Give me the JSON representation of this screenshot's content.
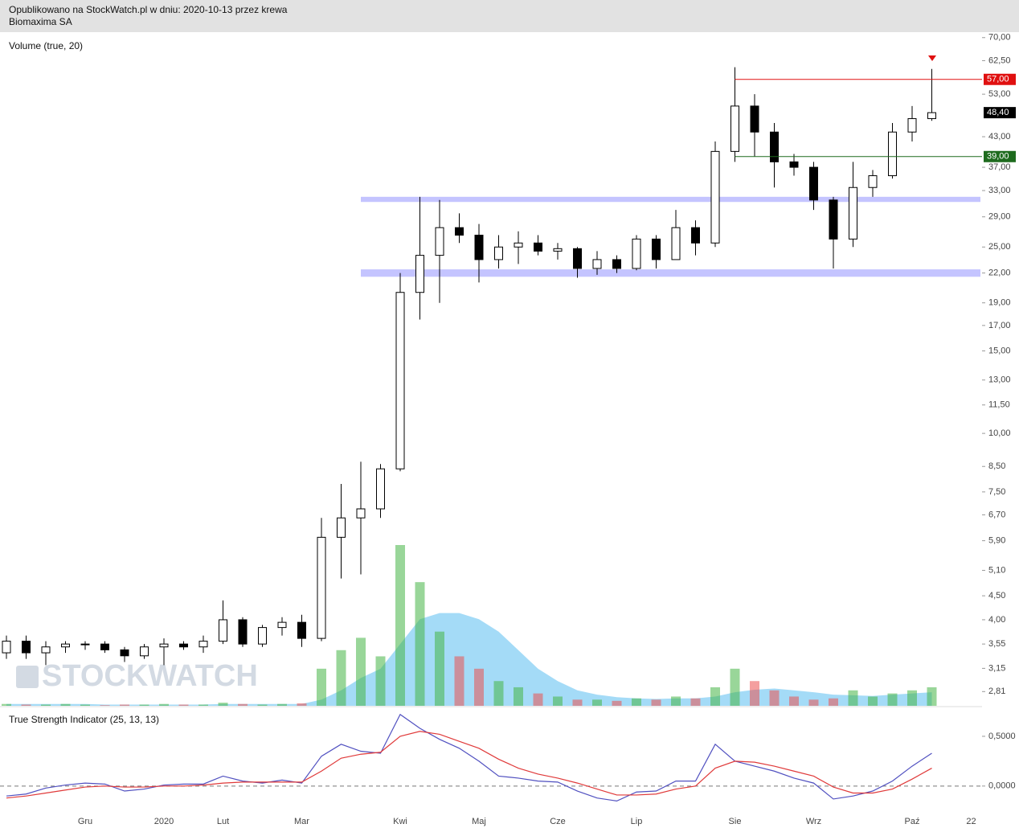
{
  "header": {
    "line1": "Opublikowano na StockWatch.pl w dniu: 2020-10-13 przez krewa",
    "line2": "Biomaxima SA"
  },
  "watermark": "STOCKWATCH",
  "chart_data": [
    {
      "type": "candlestick",
      "categories": [
        null,
        null,
        null,
        null,
        "Gru",
        null,
        null,
        null,
        "2020",
        null,
        null,
        "Lut",
        null,
        null,
        null,
        "Mar",
        null,
        null,
        null,
        null,
        "Kwi",
        null,
        null,
        null,
        "Maj",
        null,
        null,
        null,
        "Cze",
        null,
        null,
        null,
        "Lip",
        null,
        null,
        null,
        null,
        "Sie",
        null,
        null,
        null,
        "Wrz",
        null,
        null,
        null,
        null,
        "Paź",
        null,
        null,
        "22"
      ],
      "open": [
        3.4,
        3.6,
        3.4,
        3.5,
        3.55,
        3.55,
        3.45,
        3.35,
        3.5,
        3.55,
        3.5,
        3.6,
        4.0,
        3.55,
        3.85,
        3.95,
        3.65,
        6.0,
        6.6,
        6.9,
        8.4,
        20.0,
        24.0,
        27.5,
        26.5,
        23.5,
        25.0,
        25.5,
        24.5,
        24.8,
        22.5,
        23.5,
        22.5,
        26.0,
        23.5,
        27.5,
        25.5,
        40.0,
        50.0,
        44.0,
        38.0,
        37.0,
        31.5,
        26.0,
        33.5,
        35.5,
        44.0,
        47.0,
        null,
        null
      ],
      "high": [
        3.7,
        3.7,
        3.6,
        3.6,
        3.6,
        3.6,
        3.5,
        3.55,
        3.65,
        3.6,
        3.7,
        4.4,
        4.05,
        3.9,
        4.05,
        4.1,
        6.6,
        7.8,
        8.7,
        8.6,
        22.0,
        32.0,
        31.5,
        29.5,
        28.0,
        26.5,
        27.0,
        26.5,
        25.5,
        25.0,
        24.5,
        24.0,
        26.5,
        26.5,
        30.0,
        28.5,
        42.0,
        60.5,
        53.0,
        46.0,
        39.5,
        38.0,
        32.0,
        38.0,
        36.5,
        46.0,
        50.0,
        60.0,
        null,
        null
      ],
      "low": [
        3.3,
        3.3,
        3.2,
        3.4,
        3.45,
        3.4,
        3.25,
        3.3,
        3.2,
        3.45,
        3.4,
        3.55,
        3.5,
        3.5,
        3.7,
        3.5,
        3.6,
        4.9,
        5.0,
        6.6,
        8.3,
        17.5,
        19.0,
        25.5,
        21.0,
        22.5,
        23.0,
        24.0,
        23.5,
        21.5,
        21.8,
        22.0,
        22.3,
        22.5,
        23.5,
        24.0,
        25.0,
        38.0,
        39.0,
        33.5,
        35.5,
        30.0,
        22.5,
        25.0,
        32.0,
        35.0,
        42.0,
        46.5,
        null,
        null
      ],
      "close": [
        3.6,
        3.4,
        3.5,
        3.55,
        3.55,
        3.45,
        3.35,
        3.5,
        3.55,
        3.5,
        3.6,
        4.0,
        3.55,
        3.85,
        3.95,
        3.65,
        6.0,
        6.6,
        6.9,
        8.4,
        20.0,
        24.0,
        27.5,
        26.5,
        23.5,
        25.0,
        25.5,
        24.5,
        24.8,
        22.5,
        23.5,
        22.5,
        26.0,
        23.5,
        27.5,
        25.5,
        40.0,
        50.0,
        44.0,
        38.0,
        37.0,
        31.5,
        26.0,
        33.5,
        35.5,
        44.0,
        47.0,
        48.4,
        null,
        null
      ],
      "color_up": "#ffffff",
      "color_down": "#000000",
      "log_scale": true,
      "ylim": [
        2.62,
        71.9
      ],
      "yticks": [
        {
          "value": 70,
          "label": "70,00"
        },
        {
          "value": 62.5,
          "label": "62,50"
        },
        {
          "value": 53,
          "label": "53,00"
        },
        {
          "value": 43,
          "label": "43,00"
        },
        {
          "value": 37,
          "label": "37,00"
        },
        {
          "value": 33,
          "label": "33,00"
        },
        {
          "value": 29,
          "label": "29,00"
        },
        {
          "value": 25,
          "label": "25,00"
        },
        {
          "value": 22,
          "label": "22,00"
        },
        {
          "value": 19,
          "label": "19,00"
        },
        {
          "value": 17,
          "label": "17,00"
        },
        {
          "value": 15,
          "label": "15,00"
        },
        {
          "value": 13,
          "label": "13,00"
        },
        {
          "value": 11.5,
          "label": "11,50"
        },
        {
          "value": 10,
          "label": "10,00"
        },
        {
          "value": 8.5,
          "label": "8,50"
        },
        {
          "value": 7.5,
          "label": "7,50"
        },
        {
          "value": 6.7,
          "label": "6,70"
        },
        {
          "value": 5.9,
          "label": "5,90"
        },
        {
          "value": 5.1,
          "label": "5,10"
        },
        {
          "value": 4.5,
          "label": "4,50"
        },
        {
          "value": 4,
          "label": "4,00"
        },
        {
          "value": 3.55,
          "label": "3,55"
        },
        {
          "value": 3.15,
          "label": "3,15"
        },
        {
          "value": 2.81,
          "label": "2,81"
        }
      ],
      "levels": [
        {
          "value": 57,
          "label": "57,00",
          "color": "#e01010"
        },
        {
          "value": 48.4,
          "label": "48,40",
          "color": "#000000"
        },
        {
          "value": 39,
          "label": "39,00",
          "color": "#1e6b1e"
        }
      ],
      "zones": [
        {
          "from": 31.2,
          "to": 32.0,
          "color": "#c4c4ff"
        },
        {
          "from": 21.6,
          "to": 22.4,
          "color": "#c4c4ff"
        }
      ],
      "volume": {
        "label": "Volume (true, 20)",
        "values": [
          3,
          2,
          2,
          3,
          2,
          1,
          2,
          2,
          3,
          2,
          2,
          5,
          3,
          2,
          3,
          4,
          60,
          90,
          110,
          80,
          260,
          200,
          120,
          80,
          60,
          40,
          30,
          20,
          15,
          10,
          10,
          8,
          12,
          10,
          15,
          12,
          30,
          60,
          40,
          25,
          15,
          10,
          12,
          25,
          15,
          20,
          25,
          30,
          null,
          null
        ],
        "ma": [
          3,
          3,
          3,
          3,
          3,
          2,
          2,
          2,
          2,
          2,
          2,
          3,
          3,
          3,
          3,
          3,
          10,
          25,
          45,
          60,
          100,
          140,
          150,
          150,
          140,
          120,
          90,
          60,
          40,
          25,
          18,
          14,
          12,
          11,
          12,
          12,
          15,
          22,
          26,
          28,
          25,
          22,
          18,
          17,
          16,
          18,
          20,
          22,
          null,
          null
        ],
        "color_up": "rgba(70,180,70,0.55)",
        "color_down": "rgba(235,80,80,0.55)",
        "ma_color": "rgba(90,190,240,0.55)"
      }
    },
    {
      "type": "line",
      "label": "True Strength Indicator (25, 13, 13)",
      "series": [
        {
          "color": "#5050c0",
          "values": [
            -0.1,
            -0.08,
            -0.02,
            0.01,
            0.03,
            0.02,
            -0.05,
            -0.03,
            0.01,
            0.02,
            0.02,
            0.1,
            0.05,
            0.03,
            0.06,
            0.03,
            0.3,
            0.42,
            0.35,
            0.33,
            0.72,
            0.58,
            0.47,
            0.38,
            0.25,
            0.1,
            0.08,
            0.05,
            0.04,
            -0.05,
            -0.12,
            -0.15,
            -0.06,
            -0.05,
            0.05,
            0.05,
            0.42,
            0.25,
            0.2,
            0.15,
            0.08,
            0.03,
            -0.13,
            -0.1,
            -0.05,
            0.05,
            0.2,
            0.33,
            null,
            null
          ]
        },
        {
          "color": "#e03a3a",
          "values": [
            -0.12,
            -0.1,
            -0.07,
            -0.04,
            -0.01,
            0.0,
            -0.01,
            -0.01,
            0.0,
            0.0,
            0.01,
            0.03,
            0.04,
            0.04,
            0.04,
            0.04,
            0.15,
            0.28,
            0.32,
            0.34,
            0.5,
            0.55,
            0.52,
            0.45,
            0.38,
            0.27,
            0.18,
            0.12,
            0.08,
            0.03,
            -0.03,
            -0.09,
            -0.09,
            -0.08,
            -0.03,
            0.0,
            0.18,
            0.25,
            0.24,
            0.2,
            0.15,
            0.1,
            -0.01,
            -0.07,
            -0.07,
            -0.03,
            0.07,
            0.18,
            null,
            null
          ]
        }
      ],
      "ylim": [
        -0.26,
        0.75
      ],
      "yticks": [
        {
          "value": 0.5,
          "label": "0,5000"
        },
        {
          "value": 0,
          "label": "0,0000"
        }
      ],
      "zero_line": true
    }
  ]
}
